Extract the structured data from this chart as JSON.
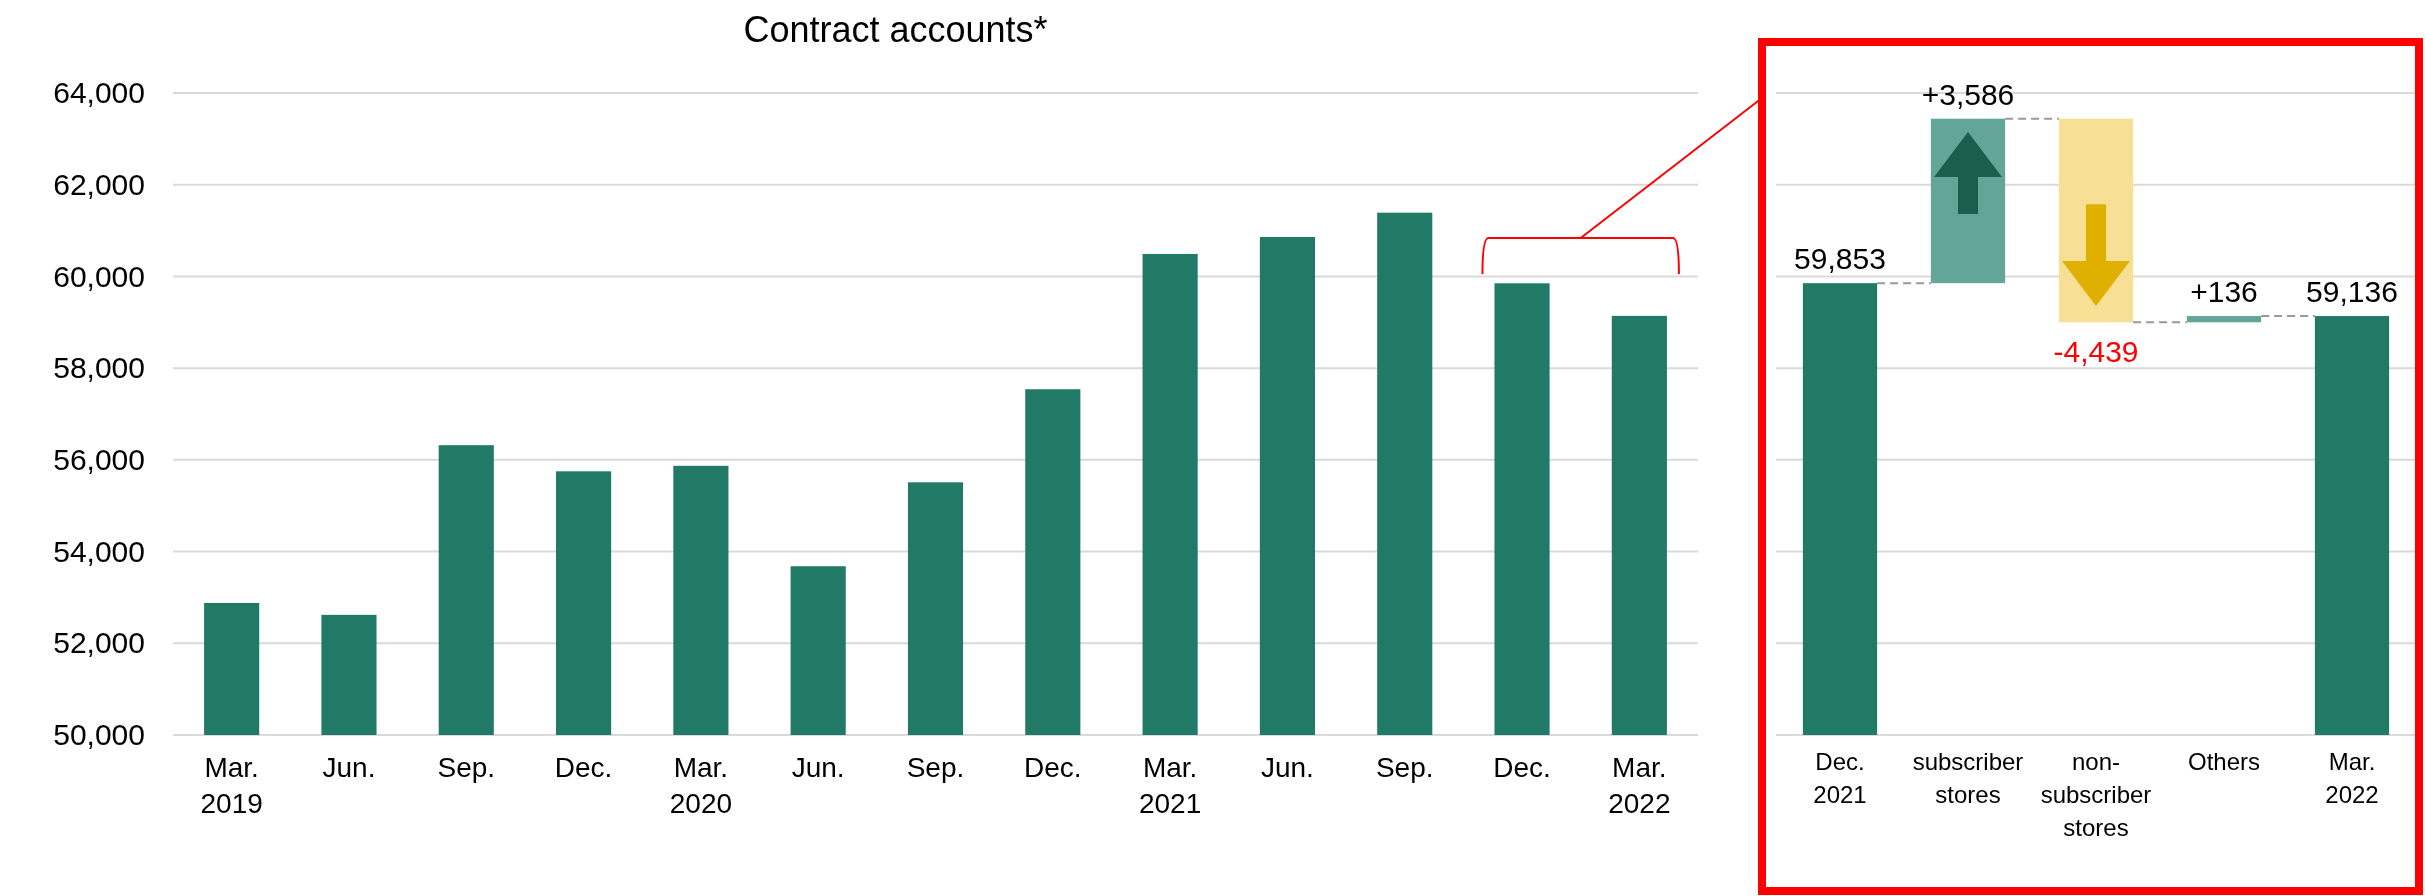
{
  "chart_data": [
    {
      "type": "bar",
      "title": "Contract accounts*",
      "categories": [
        "Mar. 2019",
        "Jun.",
        "Sep.",
        "Dec.",
        "Mar. 2020",
        "Jun.",
        "Sep.",
        "Dec.",
        "Mar. 2021",
        "Jun.",
        "Sep.",
        "Dec.",
        "Mar. 2022"
      ],
      "values": [
        52880,
        52620,
        56320,
        55750,
        55870,
        53680,
        55510,
        57540,
        60490,
        60860,
        61390,
        59850,
        59140
      ],
      "color": "#217a66",
      "ylim": [
        50000,
        64000
      ],
      "yticks": [
        {
          "value": 50000,
          "label": "50,000"
        },
        {
          "value": 52000,
          "label": "52,000"
        },
        {
          "value": 54000,
          "label": "54,000"
        },
        {
          "value": 56000,
          "label": "56,000"
        },
        {
          "value": 58000,
          "label": "58,000"
        },
        {
          "value": 60000,
          "label": "60,000"
        },
        {
          "value": 62000,
          "label": "62,000"
        },
        {
          "value": 64000,
          "label": "64,000"
        }
      ],
      "grid": "y"
    },
    {
      "type": "bar",
      "categories": [
        "Dec. 2021",
        "subscriber stores",
        "non-subscriber stores",
        "Others",
        "Mar. 2022"
      ],
      "values": [
        59853,
        3586,
        -4439,
        136,
        59136
      ],
      "base": [
        null,
        59853,
        63439,
        59000,
        null
      ],
      "colors": [
        "#217a66",
        "#64a59a",
        "#f7e095",
        "#64a59a",
        "#217a66"
      ],
      "value_labels": [
        "59,853",
        "+3,586",
        "-4,439",
        "+136",
        "59,136"
      ],
      "ylim": [
        50000,
        64000
      ],
      "yticks": [
        {
          "value": 50000,
          "label": null
        },
        {
          "value": 52000,
          "label": null
        },
        {
          "value": 54000,
          "label": null
        },
        {
          "value": 56000,
          "label": null
        },
        {
          "value": 58000,
          "label": null
        },
        {
          "value": 60000,
          "label": null
        },
        {
          "value": 62000,
          "label": null
        },
        {
          "value": 64000,
          "label": null
        }
      ],
      "grid": "y",
      "tick_labels": "x"
    }
  ]
}
